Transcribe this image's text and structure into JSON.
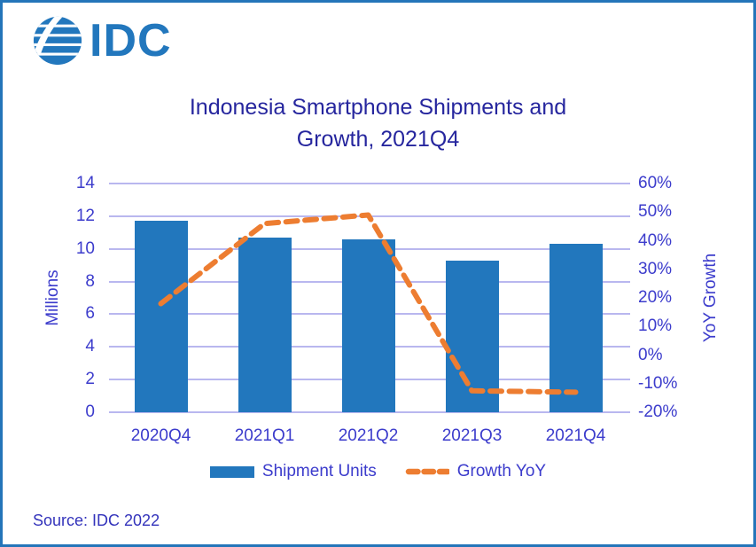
{
  "logo": {
    "text": "IDC"
  },
  "title": {
    "line1": "Indonesia Smartphone Shipments and",
    "line2": "Growth, 2021Q4"
  },
  "source": "Source: IDC 2022",
  "colors": {
    "bar": "#2277BD",
    "line": "#ED7D31",
    "grid": "#B9B7EF",
    "axis_text": "#3C3CCC",
    "title_text": "#26269E",
    "border": "#2475B9",
    "logo_blue": "#2277BD"
  },
  "chart_data": {
    "type": "bar",
    "subtype": "bar+line combo",
    "title": "Indonesia Smartphone Shipments and Growth, 2021Q4",
    "categories": [
      "2020Q4",
      "2021Q1",
      "2021Q2",
      "2021Q3",
      "2021Q4"
    ],
    "series": [
      {
        "name": "Shipment Units",
        "type": "bar",
        "axis": "left",
        "values": [
          11.7,
          10.7,
          10.6,
          9.3,
          10.3
        ],
        "color": "#2277BD"
      },
      {
        "name": "Growth YoY",
        "type": "line",
        "axis": "right",
        "style": "dashed",
        "values": [
          18,
          46,
          49,
          -12.5,
          -13
        ],
        "color": "#ED7D31"
      }
    ],
    "left_axis": {
      "label": "Millions",
      "min": 0,
      "max": 14,
      "step": 2,
      "ticks": [
        "14",
        "12",
        "10",
        "8",
        "6",
        "4",
        "2",
        "0"
      ]
    },
    "right_axis": {
      "label": "YoY Growth",
      "min": -20,
      "max": 60,
      "step": 10,
      "ticks": [
        "60%",
        "50%",
        "40%",
        "30%",
        "20%",
        "10%",
        "0%",
        "-10%",
        "-20%"
      ]
    },
    "grid": true,
    "legend_position": "bottom",
    "legend": [
      {
        "label": "Shipment Units"
      },
      {
        "label": "Growth YoY"
      }
    ]
  }
}
